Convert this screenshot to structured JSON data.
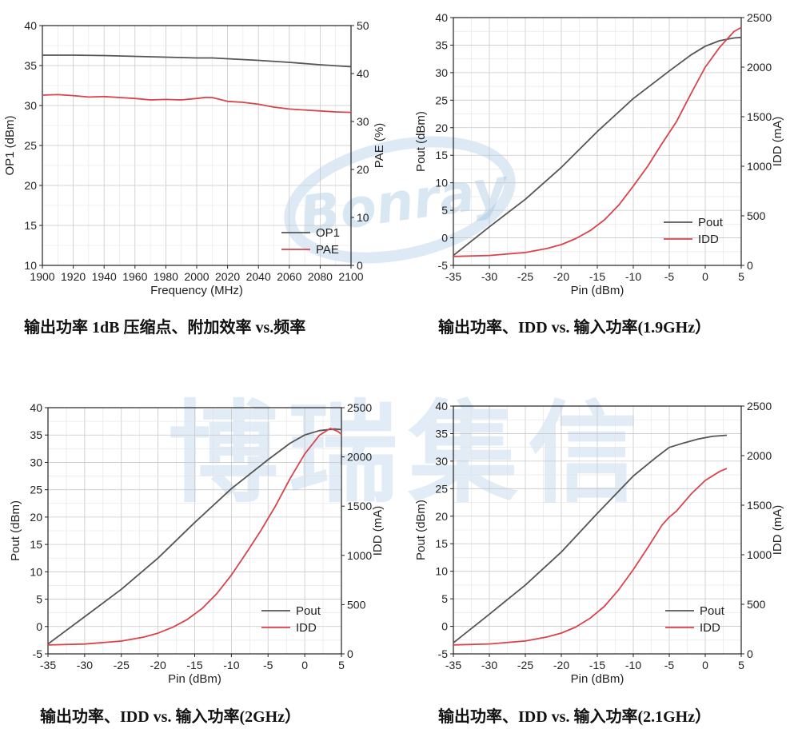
{
  "watermark": {
    "logo_text": "Bonray",
    "chinese": "博瑞集信"
  },
  "colors": {
    "pout": "#555555",
    "red": "#d9434c",
    "grid": "#c8c8c8",
    "watermark": "#78aad7"
  },
  "captions": [
    "输出功率 1dB 压缩点、附加效率  vs.频率",
    "输出功率、IDD vs.  输入功率(1.9GHz）",
    "输出功率、IDD vs.  输入功率(2GHz）",
    "输出功率、IDD vs.  输入功率(2.1GHz）"
  ],
  "chart_data": [
    {
      "type": "line",
      "xlabel": "Frequency (MHz)",
      "ylabel": "OP1 (dBm)",
      "y2label": "PAE (%)",
      "xlim": [
        1900,
        2100
      ],
      "ylim": [
        10,
        40
      ],
      "y2lim": [
        0,
        50
      ],
      "xticks": [
        1900,
        1920,
        1940,
        1960,
        1980,
        2000,
        2020,
        2040,
        2060,
        2080,
        2100
      ],
      "yticks": [
        10,
        15,
        20,
        25,
        30,
        35,
        40
      ],
      "y2ticks": [
        0,
        10,
        20,
        30,
        40,
        50
      ],
      "grid": true,
      "legend_position": "bottom-right",
      "series": [
        {
          "name": "OP1",
          "axis": "left",
          "color": "#555555",
          "x": [
            1900,
            1920,
            1940,
            1960,
            1980,
            2000,
            2010,
            2020,
            2040,
            2060,
            2080,
            2100
          ],
          "y": [
            36.3,
            36.3,
            36.25,
            36.15,
            36.05,
            35.95,
            35.95,
            35.85,
            35.65,
            35.4,
            35.1,
            34.85
          ]
        },
        {
          "name": "PAE",
          "axis": "right",
          "color": "#d9434c",
          "x": [
            1900,
            1910,
            1920,
            1930,
            1940,
            1950,
            1960,
            1970,
            1980,
            1990,
            2000,
            2005,
            2010,
            2020,
            2030,
            2040,
            2050,
            2060,
            2070,
            2080,
            2090,
            2100
          ],
          "y": [
            35.5,
            35.6,
            35.4,
            35.1,
            35.2,
            35.0,
            34.8,
            34.5,
            34.6,
            34.5,
            34.8,
            35.0,
            35.0,
            34.2,
            34.0,
            33.6,
            33.0,
            32.6,
            32.4,
            32.2,
            32.0,
            31.9
          ]
        }
      ]
    },
    {
      "type": "line",
      "xlabel": "Pin (dBm)",
      "ylabel": "Pout (dBm)",
      "y2label": "IDD (mA)",
      "xlim": [
        -35,
        5
      ],
      "ylim": [
        -5,
        40
      ],
      "y2lim": [
        0,
        2500
      ],
      "xticks": [
        -35,
        -30,
        -25,
        -20,
        -15,
        -10,
        -5,
        0,
        5
      ],
      "yticks": [
        -5,
        0,
        5,
        10,
        15,
        20,
        25,
        30,
        35,
        40
      ],
      "y2ticks": [
        0,
        500,
        1000,
        1500,
        2000,
        2500
      ],
      "grid": true,
      "legend_position": "bottom-right",
      "series": [
        {
          "name": "Pout",
          "axis": "left",
          "color": "#555555",
          "x": [
            -35,
            -30,
            -25,
            -20,
            -15,
            -10,
            -5,
            -2,
            0,
            2,
            4,
            5
          ],
          "y": [
            -3.2,
            2.0,
            7.0,
            12.8,
            19.3,
            25.3,
            30.3,
            33.2,
            34.8,
            35.8,
            36.3,
            36.4
          ]
        },
        {
          "name": "IDD",
          "axis": "right",
          "color": "#d9434c",
          "x": [
            -35,
            -30,
            -25,
            -22,
            -20,
            -18,
            -16,
            -14,
            -12,
            -10,
            -8,
            -6,
            -4,
            -2,
            0,
            2,
            4,
            5
          ],
          "y": [
            90,
            100,
            130,
            170,
            210,
            270,
            350,
            460,
            610,
            800,
            1000,
            1230,
            1450,
            1730,
            2000,
            2200,
            2360,
            2400
          ]
        }
      ]
    },
    {
      "type": "line",
      "xlabel": "Pin (dBm)",
      "ylabel": "Pout (dBm)",
      "y2label": "IDD (mA)",
      "xlim": [
        -35,
        5
      ],
      "ylim": [
        -5,
        40
      ],
      "y2lim": [
        0,
        2500
      ],
      "xticks": [
        -35,
        -30,
        -25,
        -20,
        -15,
        -10,
        -5,
        0,
        5
      ],
      "yticks": [
        -5,
        0,
        5,
        10,
        15,
        20,
        25,
        30,
        35,
        40
      ],
      "y2ticks": [
        0,
        500,
        1000,
        1500,
        2000,
        2500
      ],
      "grid": true,
      "legend_position": "bottom-right",
      "series": [
        {
          "name": "Pout",
          "axis": "left",
          "color": "#555555",
          "x": [
            -35,
            -30,
            -25,
            -20,
            -15,
            -10,
            -5,
            -2,
            0,
            2,
            4,
            5
          ],
          "y": [
            -3.2,
            1.8,
            6.8,
            12.5,
            19.0,
            25.2,
            30.5,
            33.5,
            35.0,
            35.8,
            36.1,
            36.0
          ]
        },
        {
          "name": "IDD",
          "axis": "right",
          "color": "#d9434c",
          "x": [
            -35,
            -30,
            -25,
            -22,
            -20,
            -18,
            -16,
            -14,
            -12,
            -10,
            -8,
            -6,
            -4,
            -2,
            0,
            2,
            3.5,
            4.5,
            5
          ],
          "y": [
            90,
            100,
            130,
            170,
            210,
            270,
            350,
            460,
            610,
            800,
            1020,
            1250,
            1500,
            1780,
            2030,
            2220,
            2290,
            2260,
            2230
          ]
        }
      ]
    },
    {
      "type": "line",
      "xlabel": "Pin (dBm)",
      "ylabel": "Pout (dBm)",
      "y2label": "IDD (mA)",
      "xlim": [
        -35,
        5
      ],
      "ylim": [
        -5,
        40
      ],
      "y2lim": [
        0,
        2500
      ],
      "xticks": [
        -35,
        -30,
        -25,
        -20,
        -15,
        -10,
        -5,
        0,
        5
      ],
      "yticks": [
        -5,
        0,
        5,
        10,
        15,
        20,
        25,
        30,
        35,
        40
      ],
      "y2ticks": [
        0,
        500,
        1000,
        1500,
        2000,
        2500
      ],
      "grid": true,
      "legend_position": "bottom-right",
      "series": [
        {
          "name": "Pout",
          "axis": "left",
          "color": "#555555",
          "x": [
            -35,
            -30,
            -25,
            -20,
            -15,
            -10,
            -7,
            -5,
            -3,
            -1,
            1,
            3
          ],
          "y": [
            -3.0,
            2.2,
            7.5,
            13.5,
            20.5,
            27.3,
            30.5,
            32.5,
            33.3,
            34.0,
            34.5,
            34.7
          ]
        },
        {
          "name": "IDD",
          "axis": "right",
          "color": "#d9434c",
          "x": [
            -35,
            -30,
            -25,
            -22,
            -20,
            -18,
            -16,
            -14,
            -12,
            -10,
            -8,
            -6,
            -5,
            -4,
            -2,
            0,
            2,
            3
          ],
          "y": [
            90,
            100,
            130,
            170,
            210,
            270,
            360,
            480,
            650,
            850,
            1070,
            1300,
            1380,
            1440,
            1610,
            1750,
            1840,
            1870
          ]
        }
      ]
    }
  ]
}
